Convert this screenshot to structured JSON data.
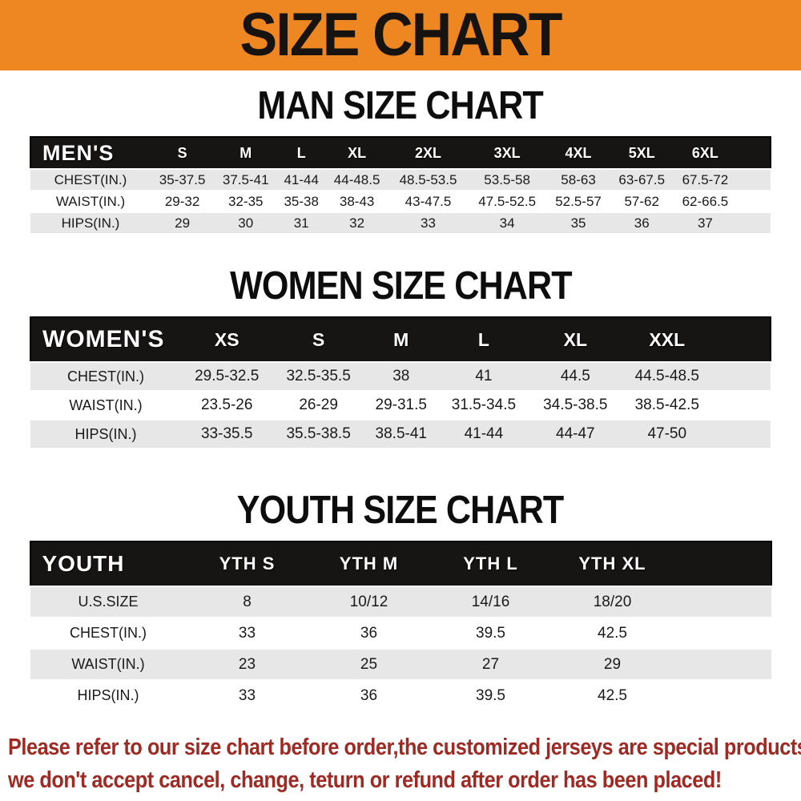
{
  "banner": {
    "title": "SIZE CHART"
  },
  "colors": {
    "banner_bg": "#EE8722",
    "table_header_bg": "#171514",
    "stripe_row_bg": "#E7E7E7",
    "footer_text": "#9E2A23"
  },
  "sections": [
    {
      "heading": "MAN SIZE CHART",
      "table": {
        "header_label": "MEN'S",
        "columns": [
          "S",
          "M",
          "L",
          "XL",
          "2XL",
          "3XL",
          "4XL",
          "5XL",
          "6XL"
        ],
        "rows": [
          {
            "label": "CHEST(IN.)",
            "values": [
              "35-37.5",
              "37.5-41",
              "41-44",
              "44-48.5",
              "48.5-53.5",
              "53.5-58",
              "58-63",
              "63-67.5",
              "67.5-72"
            ]
          },
          {
            "label": "WAIST(IN.)",
            "values": [
              "29-32",
              "32-35",
              "35-38",
              "38-43",
              "43-47.5",
              "47.5-52.5",
              "52.5-57",
              "57-62",
              "62-66.5"
            ]
          },
          {
            "label": "HIPS(IN.)",
            "values": [
              "29",
              "30",
              "31",
              "32",
              "33",
              "34",
              "35",
              "36",
              "37"
            ]
          }
        ]
      }
    },
    {
      "heading": "WOMEN SIZE CHART",
      "table": {
        "header_label": "WOMEN'S",
        "columns": [
          "XS",
          "S",
          "M",
          "L",
          "XL",
          "XXL"
        ],
        "rows": [
          {
            "label": "CHEST(IN.)",
            "values": [
              "29.5-32.5",
              "32.5-35.5",
              "38",
              "41",
              "44.5",
              "44.5-48.5"
            ]
          },
          {
            "label": "WAIST(IN.)",
            "values": [
              "23.5-26",
              "26-29",
              "29-31.5",
              "31.5-34.5",
              "34.5-38.5",
              "38.5-42.5"
            ]
          },
          {
            "label": "HIPS(IN.)",
            "values": [
              "33-35.5",
              "35.5-38.5",
              "38.5-41",
              "41-44",
              "44-47",
              "47-50"
            ]
          }
        ]
      }
    },
    {
      "heading": "YOUTH SIZE CHART",
      "table": {
        "header_label": "YOUTH",
        "columns": [
          "YTH S",
          "YTH M",
          "YTH L",
          "YTH XL"
        ],
        "rows": [
          {
            "label": "U.S.SIZE",
            "values": [
              "8",
              "10/12",
              "14/16",
              "18/20"
            ]
          },
          {
            "label": "CHEST(IN.)",
            "values": [
              "33",
              "36",
              "39.5",
              "42.5"
            ]
          },
          {
            "label": "WAIST(IN.)",
            "values": [
              "23",
              "25",
              "27",
              "29"
            ]
          },
          {
            "label": "HIPS(IN.)",
            "values": [
              "33",
              "36",
              "39.5",
              "42.5"
            ]
          }
        ]
      }
    }
  ],
  "footer": {
    "line1": "Please refer to our size chart before order,the customized jerseys are special products,",
    "line2": "we don't accept cancel, change, teturn or refund after order has been placed!"
  }
}
